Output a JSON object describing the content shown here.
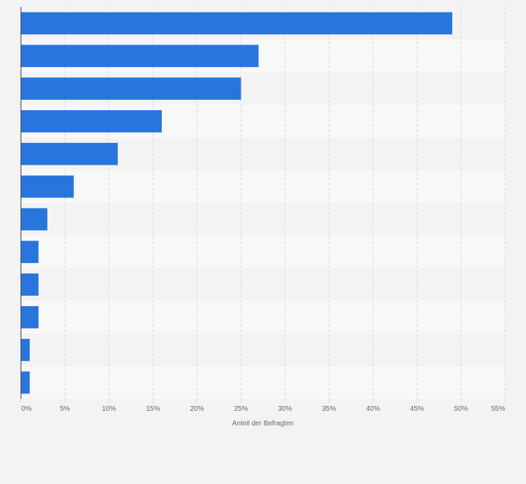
{
  "chart_data": {
    "type": "bar",
    "orientation": "horizontal",
    "categories": [
      "",
      "",
      "",
      "",
      "",
      "",
      "",
      "",
      "",
      "",
      "",
      ""
    ],
    "series": [
      {
        "values": [
          49,
          27,
          25,
          16,
          11,
          6,
          3,
          2,
          2,
          2,
          1,
          1
        ]
      }
    ],
    "xlabel": "Anteil der Befragten",
    "ylabel": "",
    "xlim": [
      0,
      55
    ],
    "x_ticks": [
      "0%",
      "5%",
      "10%",
      "15%",
      "20%",
      "25%",
      "30%",
      "35%",
      "40%",
      "45%",
      "50%",
      "55%"
    ],
    "grid": true,
    "colors": {
      "bar": "#2876dd",
      "band_dark": "#f3f3f3",
      "band_light": "#f8f8f8",
      "grid": "#d9d9d9",
      "axis": "#333333",
      "tick_text": "#666666"
    }
  }
}
